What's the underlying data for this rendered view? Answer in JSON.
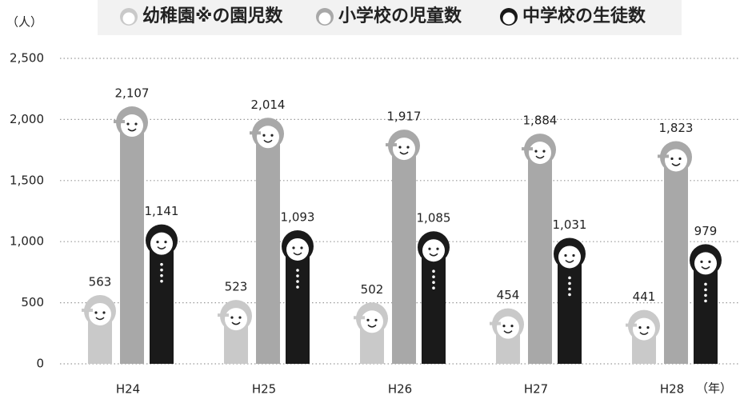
{
  "chart_data": {
    "type": "bar",
    "y_axis_label": "（人）",
    "x_axis_label": "（年）",
    "categories": [
      "H24",
      "H25",
      "H26",
      "H27",
      "H28"
    ],
    "series": [
      {
        "name": "幼稚園※の園児数",
        "color": "#c9c9c9",
        "values": [
          563,
          523,
          502,
          454,
          441
        ]
      },
      {
        "name": "小学校の児童数",
        "color": "#a8a8a8",
        "values": [
          2107,
          2014,
          1917,
          1884,
          1823
        ],
        "value_labels": [
          "2,107",
          "2,014",
          "1,917",
          "1,884",
          "1,823"
        ]
      },
      {
        "name": "中学校の生徒数",
        "color": "#1a1a1a",
        "values": [
          1141,
          1093,
          1085,
          1031,
          979
        ],
        "value_labels": [
          "1,141",
          "1,093",
          "1,085",
          "1,031",
          "979"
        ]
      }
    ],
    "ylim": [
      0,
      2500
    ],
    "yticks": [
      0,
      500,
      {
        "value": 1000,
        "label": "1,000"
      },
      {
        "value": 1500,
        "label": "1,500"
      },
      {
        "value": 2000,
        "label": "2,000"
      },
      {
        "value": 2500,
        "label": "2,500"
      }
    ],
    "grid": true
  }
}
